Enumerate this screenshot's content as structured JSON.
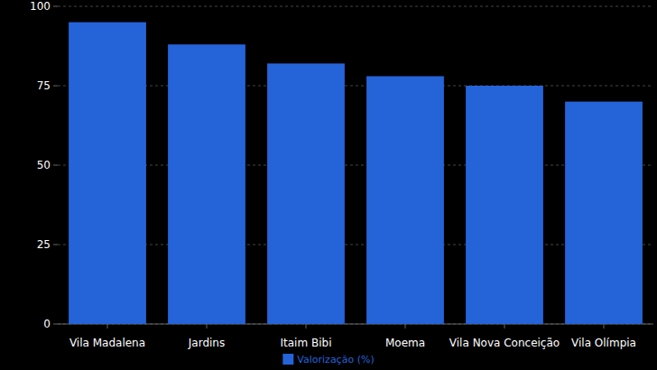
{
  "chart_data": {
    "type": "bar",
    "categories": [
      "Vila Madalena",
      "Jardins",
      "Itaim Bibi",
      "Moema",
      "Vila Nova Conceição",
      "Vila Olímpia"
    ],
    "series": [
      {
        "name": "Valorização (%)",
        "color": "#2563d9",
        "values": [
          95,
          88,
          82,
          78,
          75,
          70
        ]
      }
    ],
    "ylim": [
      0,
      100
    ],
    "yticks": [
      0,
      25,
      50,
      75,
      100
    ],
    "grid": true,
    "legend": "bottom"
  }
}
